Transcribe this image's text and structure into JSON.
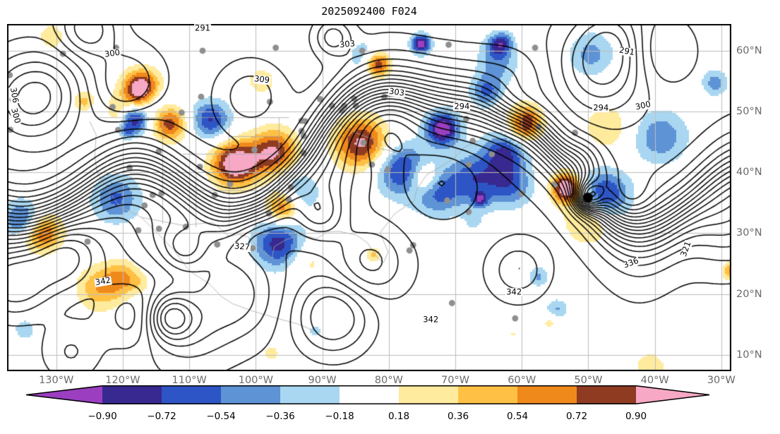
{
  "title": "2025092400 F024",
  "axes": {
    "x_tick_labels": [
      "130°W",
      "120°W",
      "110°W",
      "100°W",
      "90°W",
      "80°W",
      "70°W",
      "60°W",
      "50°W",
      "40°W",
      "30°W"
    ],
    "y_tick_labels": [
      "10°N",
      "20°N",
      "30°N",
      "40°N",
      "50°N",
      "60°N"
    ]
  },
  "colorbar": {
    "tick_labels": [
      "−0.90",
      "−0.72",
      "−0.54",
      "−0.36",
      "−0.18",
      "0.18",
      "0.36",
      "0.54",
      "0.72",
      "0.90"
    ]
  },
  "chart_data": {
    "type": "heatmap",
    "subtype": "contour map with filled anomaly shading, station dots and lat/lon grid",
    "title": "2025092400 F024",
    "xlabel": "",
    "ylabel": "",
    "grid": true,
    "lon_ticks_deg": [
      -130,
      -120,
      -110,
      -100,
      -90,
      -80,
      -70,
      -60,
      -50,
      -40,
      -30
    ],
    "lat_ticks_deg": [
      10,
      20,
      30,
      40,
      50,
      60
    ],
    "lon_range_deg": [
      -137.4,
      -28.5
    ],
    "lat_range_deg": [
      7.3,
      64.4
    ],
    "contours": {
      "style": "solid black",
      "interval": 3,
      "min": 279,
      "max": 351,
      "labeled_values": [
        291,
        294,
        300,
        303,
        306,
        309,
        321,
        327,
        336,
        342
      ]
    },
    "contour_labels": [
      {
        "v": "300",
        "x": 0.145,
        "y": 0.085,
        "r": -8
      },
      {
        "v": "291",
        "x": 0.27,
        "y": 0.012,
        "r": 0
      },
      {
        "v": "309",
        "x": 0.352,
        "y": 0.16,
        "r": 6
      },
      {
        "v": "303",
        "x": 0.47,
        "y": 0.058,
        "r": -5
      },
      {
        "v": "303",
        "x": 0.538,
        "y": 0.198,
        "r": 8
      },
      {
        "v": "294",
        "x": 0.628,
        "y": 0.238,
        "r": 0
      },
      {
        "v": "291",
        "x": 0.856,
        "y": 0.08,
        "r": 10
      },
      {
        "v": "294",
        "x": 0.82,
        "y": 0.242,
        "r": 0
      },
      {
        "v": "300",
        "x": 0.878,
        "y": 0.236,
        "r": -12
      },
      {
        "v": "306",
        "x": 0.01,
        "y": 0.205,
        "r": 80
      },
      {
        "v": "300",
        "x": 0.012,
        "y": 0.265,
        "r": 75
      },
      {
        "v": "342",
        "x": 0.133,
        "y": 0.742,
        "r": -10
      },
      {
        "v": "327",
        "x": 0.325,
        "y": 0.642,
        "r": 5
      },
      {
        "v": "342",
        "x": 0.7,
        "y": 0.772,
        "r": 0
      },
      {
        "v": "342",
        "x": 0.585,
        "y": 0.852,
        "r": 0
      },
      {
        "v": "321",
        "x": 0.938,
        "y": 0.648,
        "r": -70
      },
      {
        "v": "336",
        "x": 0.862,
        "y": 0.69,
        "r": -20
      }
    ],
    "shading": {
      "levels": [
        -0.9,
        -0.72,
        -0.54,
        -0.36,
        -0.18,
        0.18,
        0.36,
        0.54,
        0.72,
        0.9
      ],
      "colors": [
        "#9b3fc0",
        "#37298f",
        "#2e55c5",
        "#5e93d6",
        "#a9d7f1",
        "#ffffff",
        "#ffeb9e",
        "#ffc145",
        "#f0891c",
        "#8e3b22",
        "#f6a8c5"
      ],
      "extend": "both"
    },
    "station_marker_color": "#8f8f8f",
    "grid_color": "#bdbdbd",
    "geo_line_color": "#a8a8a8",
    "vortex_marker": {
      "x": 0.802,
      "y": 0.5,
      "color": "#000000"
    }
  }
}
